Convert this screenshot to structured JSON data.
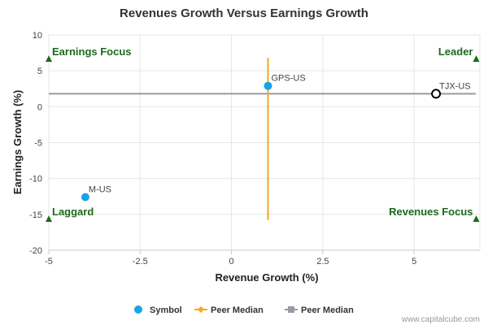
{
  "chart_data": {
    "type": "scatter",
    "title": "Revenues Growth Versus Earnings Growth",
    "xlabel": "Revenue Growth (%)",
    "ylabel": "Earnings Growth (%)",
    "xlim": [
      -5,
      6.8
    ],
    "ylim": [
      -20,
      10
    ],
    "x_ticks": [
      -5,
      -2.5,
      0,
      2.5,
      5
    ],
    "x_tick_labels": [
      "-5",
      "-2.5",
      "0",
      "2.5",
      "5"
    ],
    "y_ticks": [
      10,
      5,
      0,
      -5,
      -10,
      -15,
      -20
    ],
    "y_tick_labels": [
      "10",
      "5",
      "0",
      "-5",
      "-10",
      "-15",
      "-20"
    ],
    "points": [
      {
        "name": "GPS-US",
        "x": 1.0,
        "y": 2.9,
        "style": "filled"
      },
      {
        "name": "TJX-US",
        "x": 5.6,
        "y": 1.8,
        "style": "hollow"
      },
      {
        "name": "M-US",
        "x": -4.0,
        "y": -12.6,
        "style": "filled"
      }
    ],
    "peer_median_revenue": {
      "x": 1.0,
      "y_range": [
        -15.8,
        6.8
      ]
    },
    "peer_median_earnings": {
      "y": 1.8,
      "x_range": [
        -5,
        6.8
      ]
    },
    "quadrants": [
      {
        "label": "Earnings Focus",
        "x": -5,
        "y": 6.7,
        "anchor": "start"
      },
      {
        "label": "Leader",
        "x": 6.7,
        "y": 6.7,
        "anchor": "end"
      },
      {
        "label": "Laggard",
        "x": -5,
        "y": -15.6,
        "anchor": "start"
      },
      {
        "label": "Revenues Focus",
        "x": 6.7,
        "y": -15.6,
        "anchor": "end"
      }
    ],
    "legend": [
      {
        "label": "Symbol",
        "marker": "circle"
      },
      {
        "label": "Peer Median",
        "marker": "diamond-line"
      },
      {
        "label": "Peer Median",
        "marker": "square-line"
      }
    ],
    "legend_position": "bottom-center",
    "colors": {
      "symbol": "#1aa3e8",
      "hollow_stroke": "#000000",
      "peer_revenue": "#f5a623",
      "peer_earnings": "#999aa6",
      "quadrant": "#1a6b1a",
      "grid": "#e6e6e6",
      "axis": "#c8c8c8"
    }
  },
  "credit": "www.capitalcube.com"
}
